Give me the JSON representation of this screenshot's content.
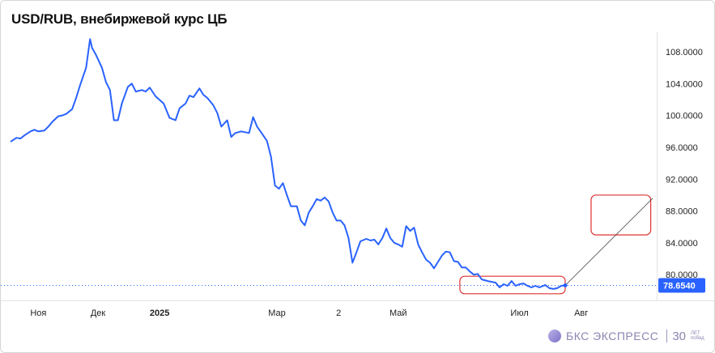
{
  "title": "USD/RUB, внебиржевой курс ЦБ",
  "chart_data": {
    "type": "line",
    "title": "USD/RUB, внебиржевой курс ЦБ",
    "xlabel": "",
    "ylabel": "",
    "ylim": [
      76.2,
      112.0
    ],
    "y_ticks": [
      "108.0000",
      "104.0000",
      "100.0000",
      "96.0000",
      "92.0000",
      "88.0000",
      "84.0000",
      "80.0000"
    ],
    "y_tick_values": [
      108,
      104,
      100,
      96,
      92,
      88,
      84,
      80
    ],
    "x_ticks": [
      {
        "label": "Ноя",
        "x": "2024-11-01",
        "bold": false
      },
      {
        "label": "Дек",
        "x": "2024-12-01",
        "bold": false
      },
      {
        "label": "2025",
        "x": "2025-01-01",
        "bold": true
      },
      {
        "label": "Мар",
        "x": "2025-03-01",
        "bold": false
      },
      {
        "label": "2",
        "x": "2025-04-01",
        "bold": false
      },
      {
        "label": "Май",
        "x": "2025-05-01",
        "bold": false
      },
      {
        "label": "Июл",
        "x": "2025-07-01",
        "bold": false
      },
      {
        "label": "Авг",
        "x": "2025-08-01",
        "bold": false
      }
    ],
    "last_value_label": "78.6540",
    "last_value": 78.654,
    "grid": false,
    "series": [
      {
        "color": "#2962ff",
        "points": [
          [
            "2024-10-18",
            96.7
          ],
          [
            "2024-10-21",
            97.2
          ],
          [
            "2024-10-23",
            97.1
          ],
          [
            "2024-10-25",
            97.5
          ],
          [
            "2024-10-28",
            98.0
          ],
          [
            "2024-10-30",
            98.2
          ],
          [
            "2024-11-01",
            98.0
          ],
          [
            "2024-11-04",
            98.1
          ],
          [
            "2024-11-06",
            98.6
          ],
          [
            "2024-11-08",
            99.2
          ],
          [
            "2024-11-11",
            99.9
          ],
          [
            "2024-11-13",
            100.0
          ],
          [
            "2024-11-15",
            100.2
          ],
          [
            "2024-11-18",
            100.8
          ],
          [
            "2024-11-20",
            102.2
          ],
          [
            "2024-11-22",
            103.8
          ],
          [
            "2024-11-25",
            106.0
          ],
          [
            "2024-11-27",
            109.6
          ],
          [
            "2024-11-28",
            108.5
          ],
          [
            "2024-11-30",
            107.6
          ],
          [
            "2024-12-03",
            106.0
          ],
          [
            "2024-12-05",
            104.2
          ],
          [
            "2024-12-07",
            103.2
          ],
          [
            "2024-12-09",
            99.4
          ],
          [
            "2024-12-11",
            99.4
          ],
          [
            "2024-12-13",
            101.5
          ],
          [
            "2024-12-16",
            103.6
          ],
          [
            "2024-12-18",
            104.0
          ],
          [
            "2024-12-20",
            103.0
          ],
          [
            "2024-12-23",
            103.2
          ],
          [
            "2024-12-25",
            103.0
          ],
          [
            "2024-12-27",
            103.5
          ],
          [
            "2024-12-30",
            102.4
          ],
          [
            "2025-01-03",
            101.5
          ],
          [
            "2025-01-06",
            99.7
          ],
          [
            "2025-01-09",
            99.4
          ],
          [
            "2025-01-11",
            100.9
          ],
          [
            "2025-01-14",
            101.5
          ],
          [
            "2025-01-16",
            102.5
          ],
          [
            "2025-01-18",
            102.3
          ],
          [
            "2025-01-21",
            103.4
          ],
          [
            "2025-01-23",
            102.6
          ],
          [
            "2025-01-25",
            102.2
          ],
          [
            "2025-01-28",
            101.3
          ],
          [
            "2025-01-30",
            100.3
          ],
          [
            "2025-02-01",
            98.6
          ],
          [
            "2025-02-04",
            99.4
          ],
          [
            "2025-02-06",
            97.3
          ],
          [
            "2025-02-08",
            97.8
          ],
          [
            "2025-02-11",
            98.0
          ],
          [
            "2025-02-13",
            97.9
          ],
          [
            "2025-02-15",
            97.8
          ],
          [
            "2025-02-17",
            99.8
          ],
          [
            "2025-02-19",
            98.6
          ],
          [
            "2025-02-21",
            97.9
          ],
          [
            "2025-02-24",
            96.8
          ],
          [
            "2025-02-26",
            94.8
          ],
          [
            "2025-02-28",
            91.2
          ],
          [
            "2025-03-02",
            90.8
          ],
          [
            "2025-03-04",
            91.5
          ],
          [
            "2025-03-06",
            90.0
          ],
          [
            "2025-03-08",
            88.6
          ],
          [
            "2025-03-11",
            88.6
          ],
          [
            "2025-03-13",
            86.8
          ],
          [
            "2025-03-15",
            86.2
          ],
          [
            "2025-03-17",
            87.8
          ],
          [
            "2025-03-19",
            88.6
          ],
          [
            "2025-03-21",
            89.5
          ],
          [
            "2025-03-23",
            89.3
          ],
          [
            "2025-03-25",
            89.7
          ],
          [
            "2025-03-27",
            89.2
          ],
          [
            "2025-03-29",
            87.8
          ],
          [
            "2025-03-31",
            86.8
          ],
          [
            "2025-04-02",
            86.8
          ],
          [
            "2025-04-04",
            86.2
          ],
          [
            "2025-04-06",
            84.6
          ],
          [
            "2025-04-08",
            81.5
          ],
          [
            "2025-04-10",
            82.8
          ],
          [
            "2025-04-12",
            84.2
          ],
          [
            "2025-04-15",
            84.5
          ],
          [
            "2025-04-17",
            84.3
          ],
          [
            "2025-04-19",
            84.4
          ],
          [
            "2025-04-21",
            83.8
          ],
          [
            "2025-04-23",
            84.6
          ],
          [
            "2025-04-25",
            85.8
          ],
          [
            "2025-04-27",
            84.6
          ],
          [
            "2025-04-29",
            84.0
          ],
          [
            "2025-05-01",
            83.8
          ],
          [
            "2025-05-03",
            83.5
          ],
          [
            "2025-05-05",
            86.1
          ],
          [
            "2025-05-07",
            85.5
          ],
          [
            "2025-05-09",
            85.9
          ],
          [
            "2025-05-11",
            83.8
          ],
          [
            "2025-05-13",
            82.8
          ],
          [
            "2025-05-15",
            81.9
          ],
          [
            "2025-05-17",
            81.5
          ],
          [
            "2025-05-19",
            80.8
          ],
          [
            "2025-05-21",
            81.6
          ],
          [
            "2025-05-23",
            82.4
          ],
          [
            "2025-05-25",
            82.9
          ],
          [
            "2025-05-27",
            82.8
          ],
          [
            "2025-05-29",
            81.7
          ],
          [
            "2025-05-31",
            81.6
          ],
          [
            "2025-06-02",
            80.9
          ],
          [
            "2025-06-04",
            80.9
          ],
          [
            "2025-06-06",
            80.4
          ],
          [
            "2025-06-08",
            80.0
          ],
          [
            "2025-06-10",
            80.1
          ],
          [
            "2025-06-12",
            79.4
          ],
          [
            "2025-06-15",
            79.2
          ],
          [
            "2025-06-17",
            79.1
          ],
          [
            "2025-06-19",
            79.0
          ],
          [
            "2025-06-21",
            78.4
          ],
          [
            "2025-06-23",
            78.8
          ],
          [
            "2025-06-25",
            78.6
          ],
          [
            "2025-06-27",
            79.2
          ],
          [
            "2025-06-29",
            78.6
          ],
          [
            "2025-07-01",
            78.8
          ],
          [
            "2025-07-03",
            78.9
          ],
          [
            "2025-07-05",
            78.6
          ],
          [
            "2025-07-07",
            78.4
          ],
          [
            "2025-07-09",
            78.6
          ],
          [
            "2025-07-11",
            78.4
          ],
          [
            "2025-07-14",
            78.7
          ],
          [
            "2025-07-16",
            78.3
          ],
          [
            "2025-07-18",
            78.2
          ],
          [
            "2025-07-20",
            78.3
          ],
          [
            "2025-07-22",
            78.6
          ],
          [
            "2025-07-24",
            78.654
          ]
        ]
      }
    ],
    "projection_line": {
      "color": "#333333",
      "from": [
        "2025-07-24",
        78.654
      ],
      "to": [
        "2025-09-06",
        89.6
      ]
    },
    "annotations": [
      {
        "shape": "rounded-rect",
        "color": "#e03030",
        "x_range": [
          "2025-06-01",
          "2025-07-24"
        ],
        "y_range": [
          77.6,
          79.8
        ]
      },
      {
        "shape": "rounded-rect",
        "color": "#e03030",
        "x_range": [
          "2025-08-06",
          "2025-09-05"
        ],
        "y_range": [
          85.0,
          90.0
        ]
      }
    ]
  },
  "branding": {
    "brand_text": "БКС ЭКСПРЕСС",
    "anniversary_number": "30",
    "anniversary_caption_line1": "ЛЕТ",
    "anniversary_caption_line2": "побед"
  }
}
